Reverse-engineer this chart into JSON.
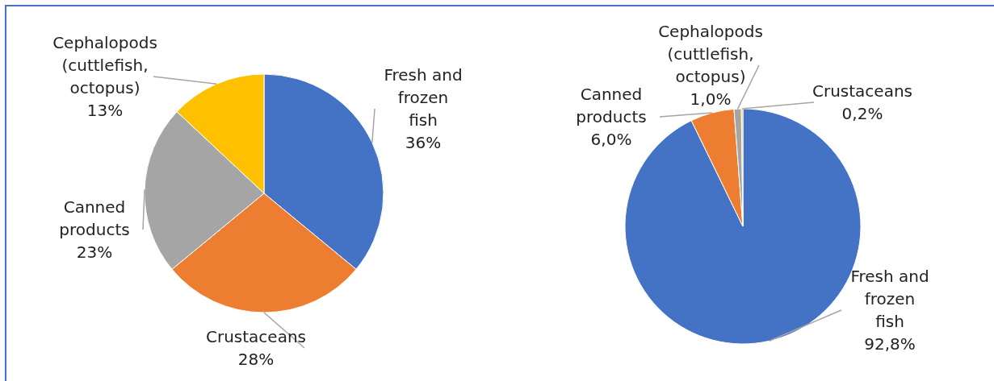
{
  "chart_data": [
    {
      "type": "pie",
      "categories": [
        "Fresh and frozen fish",
        "Crustaceans",
        "Canned products",
        "Cephalopods (cuttlefish, octopus)"
      ],
      "values": [
        36,
        28,
        23,
        13
      ],
      "colors": [
        "#4472c4",
        "#ed7d31",
        "#a5a5a5",
        "#ffc000"
      ],
      "value_labels": [
        "36%",
        "28%",
        "23%",
        "13%"
      ]
    },
    {
      "type": "pie",
      "categories": [
        "Fresh and frozen fish",
        "Canned products",
        "Cephalopods (cuttlefish, octopus)",
        "Crustaceans"
      ],
      "values": [
        92.8,
        6.0,
        1.0,
        0.2
      ],
      "colors": [
        "#4472c4",
        "#ed7d31",
        "#a5a5a5",
        "#ffc000"
      ],
      "value_labels": [
        "92,8%",
        "6,0%",
        "1,0%",
        "0,2%"
      ]
    }
  ]
}
